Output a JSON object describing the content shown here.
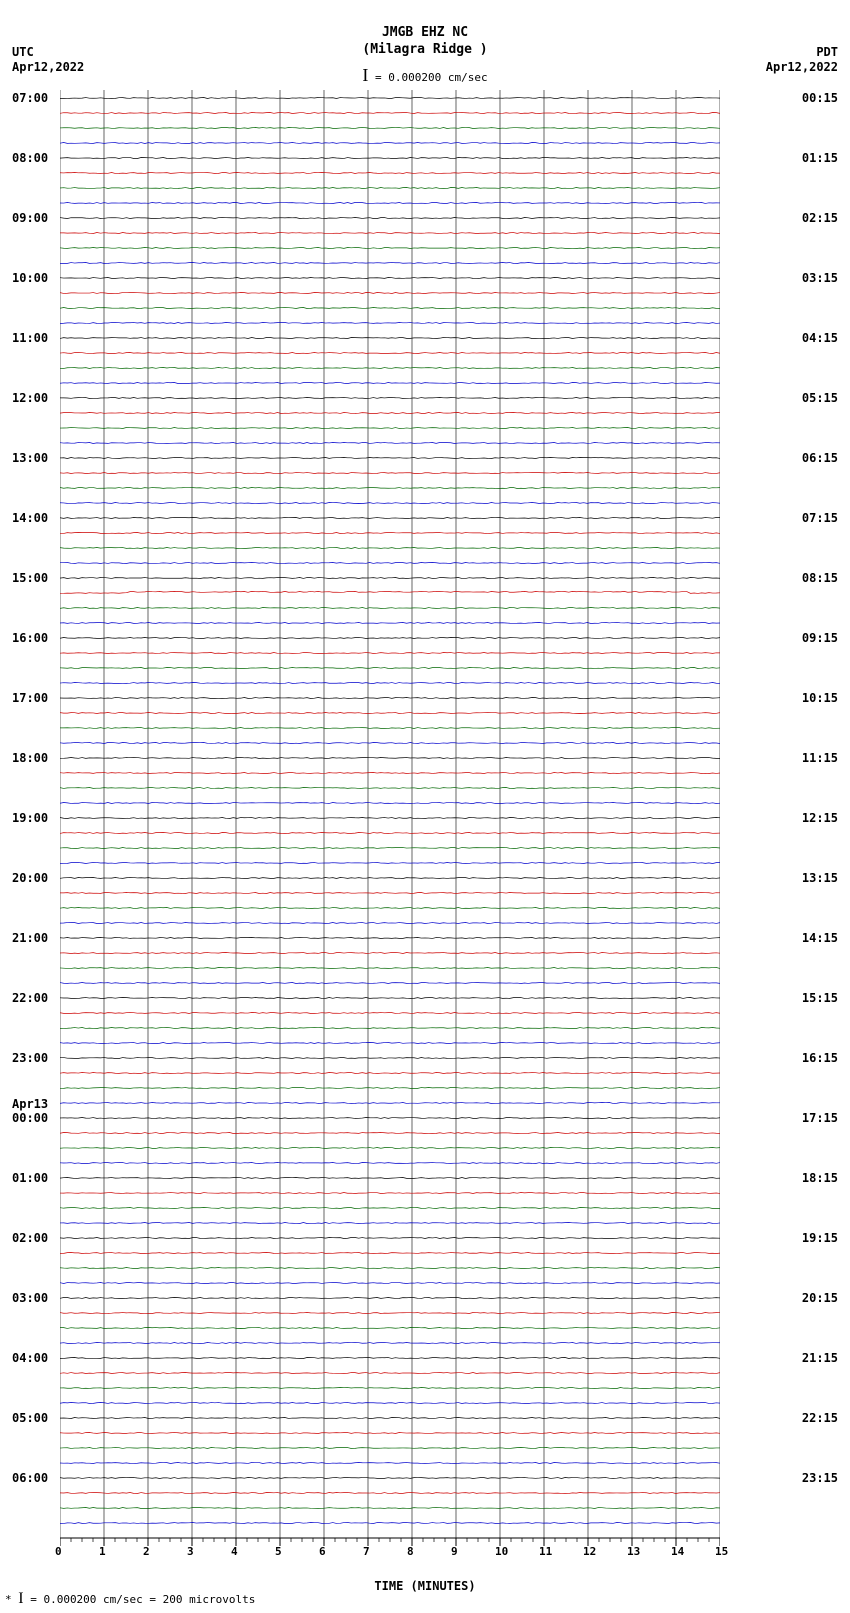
{
  "header": {
    "title": "JMGB EHZ NC",
    "subtitle": "(Milagra Ridge )",
    "scale_text": "= 0.000200 cm/sec"
  },
  "left_label": {
    "tz": "UTC",
    "date": "Apr12,2022",
    "day2": "Apr13"
  },
  "right_label": {
    "tz": "PDT",
    "date": "Apr12,2022"
  },
  "plot": {
    "x_min": 0,
    "x_max": 15,
    "x_ticks": [
      0,
      1,
      2,
      3,
      4,
      5,
      6,
      7,
      8,
      9,
      10,
      11,
      12,
      13,
      14,
      15
    ],
    "x_label": "TIME (MINUTES)",
    "grid_color": "#000000",
    "background": "#ffffff",
    "line_colors": [
      "#000000",
      "#cc0000",
      "#006600",
      "#0000cc"
    ],
    "hours_utc": [
      "07:00",
      "08:00",
      "09:00",
      "10:00",
      "11:00",
      "12:00",
      "13:00",
      "14:00",
      "15:00",
      "16:00",
      "17:00",
      "18:00",
      "19:00",
      "20:00",
      "21:00",
      "22:00",
      "23:00",
      "00:00",
      "01:00",
      "02:00",
      "03:00",
      "04:00",
      "05:00",
      "06:00"
    ],
    "hours_pdt": [
      "00:15",
      "01:15",
      "02:15",
      "03:15",
      "04:15",
      "05:15",
      "06:15",
      "07:15",
      "08:15",
      "09:15",
      "10:15",
      "11:15",
      "12:15",
      "13:15",
      "14:15",
      "15:15",
      "16:15",
      "17:15",
      "18:15",
      "19:15",
      "20:15",
      "21:15",
      "22:15",
      "23:15"
    ],
    "lines_per_hour": 4,
    "total_lines": 96,
    "noise_amp": 0.5,
    "special_offset_lines": [
      33
    ],
    "special_offset_amp": 2.0
  },
  "footer": {
    "text": "= 0.000200 cm/sec =    200 microvolts",
    "prefix": "* "
  }
}
